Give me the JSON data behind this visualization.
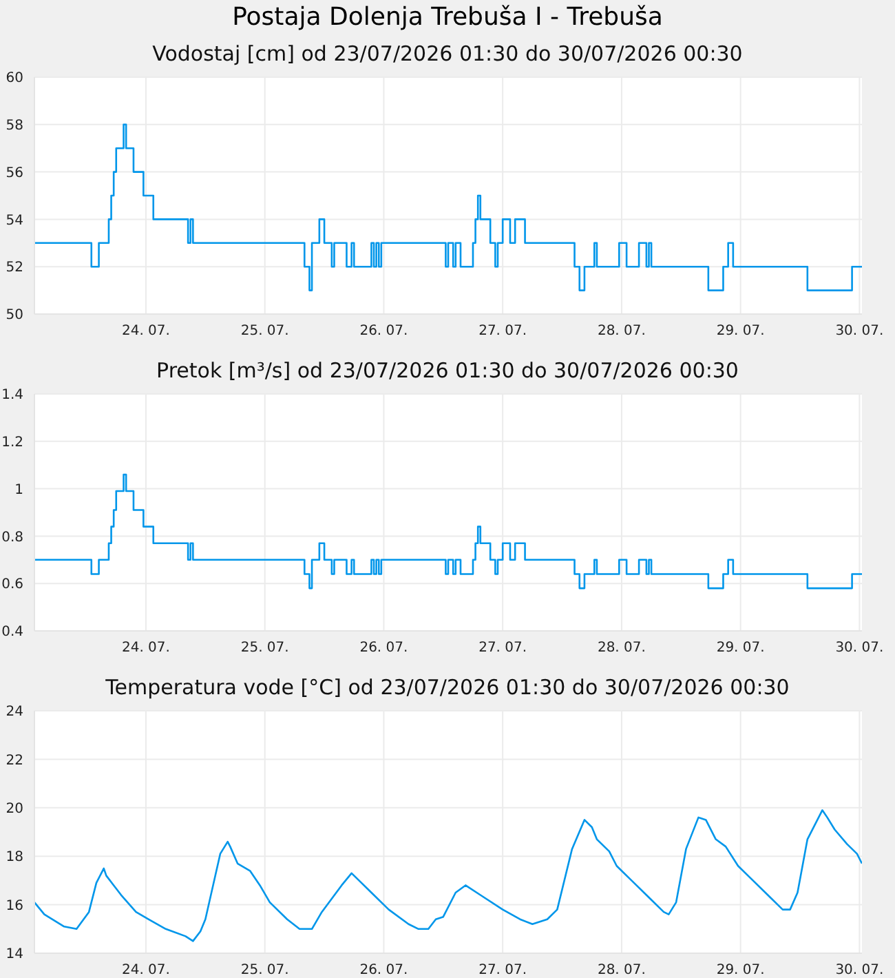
{
  "chart_data": [
    {
      "type": "step",
      "title": "Postaja Dolenja Trebuša I - Trebuša",
      "subtitle": "Vodostaj [cm] od 23/07/2026 01:30 do 30/07/2026 00:30",
      "x": [
        "2026-07-23T01:30",
        "2026-07-23T13:00",
        "2026-07-23T14:30",
        "2026-07-23T16:30",
        "2026-07-23T17:00",
        "2026-07-23T17:30",
        "2026-07-23T18:00",
        "2026-07-23T19:30",
        "2026-07-23T20:00",
        "2026-07-23T21:30",
        "2026-07-23T23:30",
        "2026-07-24T01:30",
        "2026-07-24T08:30",
        "2026-07-24T09:00",
        "2026-07-24T09:30",
        "2026-07-25T08:00",
        "2026-07-25T09:00",
        "2026-07-25T09:30",
        "2026-07-25T11:00",
        "2026-07-25T12:00",
        "2026-07-25T13:30",
        "2026-07-25T14:00",
        "2026-07-25T16:30",
        "2026-07-25T17:30",
        "2026-07-25T18:00",
        "2026-07-25T21:30",
        "2026-07-25T22:00",
        "2026-07-25T22:30",
        "2026-07-25T23:00",
        "2026-07-25T23:30",
        "2026-07-26T12:30",
        "2026-07-26T13:00",
        "2026-07-26T14:00",
        "2026-07-26T14:30",
        "2026-07-26T15:30",
        "2026-07-26T18:00",
        "2026-07-26T18:30",
        "2026-07-26T19:00",
        "2026-07-26T19:30",
        "2026-07-26T21:30",
        "2026-07-26T22:30",
        "2026-07-26T23:00",
        "2026-07-27T00:00",
        "2026-07-27T01:30",
        "2026-07-27T02:30",
        "2026-07-27T04:30",
        "2026-07-27T14:30",
        "2026-07-27T15:30",
        "2026-07-27T16:30",
        "2026-07-27T18:30",
        "2026-07-27T19:00",
        "2026-07-27T23:30",
        "2026-07-28T01:00",
        "2026-07-28T03:30",
        "2026-07-28T05:00",
        "2026-07-28T05:30",
        "2026-07-28T06:00",
        "2026-07-28T17:30",
        "2026-07-28T20:30",
        "2026-07-28T21:30",
        "2026-07-28T22:30",
        "2026-07-29T13:30",
        "2026-07-29T22:30",
        "2026-07-30T00:30"
      ],
      "series": [
        {
          "color": "#0096ea",
          "values": [
            53,
            52,
            53,
            54,
            55,
            56,
            57,
            58,
            57,
            56,
            55,
            54,
            53,
            54,
            53,
            52,
            51,
            53,
            54,
            53,
            52,
            53,
            52,
            53,
            52,
            53,
            52,
            53,
            52,
            53,
            52,
            53,
            52,
            53,
            52,
            53,
            54,
            55,
            54,
            53,
            52,
            53,
            54,
            53,
            54,
            53,
            52,
            51,
            52,
            53,
            52,
            53,
            52,
            53,
            52,
            53,
            52,
            51,
            52,
            53,
            52,
            51,
            52,
            52
          ]
        }
      ],
      "xlim": [
        "2026-07-23T01:30",
        "2026-07-30T00:30"
      ],
      "xticks": [
        {
          "value": "2026-07-24",
          "label": "24. 07."
        },
        {
          "value": "2026-07-25",
          "label": "25. 07."
        },
        {
          "value": "2026-07-26",
          "label": "26. 07."
        },
        {
          "value": "2026-07-27",
          "label": "27. 07."
        },
        {
          "value": "2026-07-28",
          "label": "28. 07."
        },
        {
          "value": "2026-07-29",
          "label": "29. 07."
        },
        {
          "value": "2026-07-30",
          "label": "30. 07."
        }
      ],
      "ylim": [
        50,
        60
      ],
      "yticks": [
        50,
        52,
        54,
        56,
        58,
        60
      ],
      "grid": true,
      "legend": false
    },
    {
      "type": "step",
      "title": "Pretok [m³/s] od 23/07/2026 01:30 do 30/07/2026 00:30",
      "x": [
        "2026-07-23T01:30",
        "2026-07-23T13:00",
        "2026-07-23T14:30",
        "2026-07-23T16:30",
        "2026-07-23T17:00",
        "2026-07-23T17:30",
        "2026-07-23T18:00",
        "2026-07-23T19:30",
        "2026-07-23T20:00",
        "2026-07-23T21:30",
        "2026-07-23T23:30",
        "2026-07-24T01:30",
        "2026-07-24T08:30",
        "2026-07-24T09:00",
        "2026-07-24T09:30",
        "2026-07-25T08:00",
        "2026-07-25T09:00",
        "2026-07-25T09:30",
        "2026-07-25T11:00",
        "2026-07-25T12:00",
        "2026-07-25T13:30",
        "2026-07-25T14:00",
        "2026-07-25T16:30",
        "2026-07-25T17:30",
        "2026-07-25T18:00",
        "2026-07-25T21:30",
        "2026-07-25T22:00",
        "2026-07-25T22:30",
        "2026-07-25T23:00",
        "2026-07-25T23:30",
        "2026-07-26T12:30",
        "2026-07-26T13:00",
        "2026-07-26T14:00",
        "2026-07-26T14:30",
        "2026-07-26T15:30",
        "2026-07-26T18:00",
        "2026-07-26T18:30",
        "2026-07-26T19:00",
        "2026-07-26T19:30",
        "2026-07-26T21:30",
        "2026-07-26T22:30",
        "2026-07-26T23:00",
        "2026-07-27T00:00",
        "2026-07-27T01:30",
        "2026-07-27T02:30",
        "2026-07-27T04:30",
        "2026-07-27T14:30",
        "2026-07-27T15:30",
        "2026-07-27T16:30",
        "2026-07-27T18:30",
        "2026-07-27T19:00",
        "2026-07-27T23:30",
        "2026-07-28T01:00",
        "2026-07-28T03:30",
        "2026-07-28T05:00",
        "2026-07-28T05:30",
        "2026-07-28T06:00",
        "2026-07-28T17:30",
        "2026-07-28T20:30",
        "2026-07-28T21:30",
        "2026-07-28T22:30",
        "2026-07-29T13:30",
        "2026-07-29T22:30",
        "2026-07-30T00:30"
      ],
      "series": [
        {
          "color": "#0096ea",
          "values": [
            0.7,
            0.64,
            0.7,
            0.77,
            0.84,
            0.91,
            0.99,
            1.06,
            0.99,
            0.91,
            0.84,
            0.77,
            0.7,
            0.77,
            0.7,
            0.64,
            0.58,
            0.7,
            0.77,
            0.7,
            0.64,
            0.7,
            0.64,
            0.7,
            0.64,
            0.7,
            0.64,
            0.7,
            0.64,
            0.7,
            0.64,
            0.7,
            0.64,
            0.7,
            0.64,
            0.7,
            0.77,
            0.84,
            0.77,
            0.7,
            0.64,
            0.7,
            0.77,
            0.7,
            0.77,
            0.7,
            0.64,
            0.58,
            0.64,
            0.7,
            0.64,
            0.7,
            0.64,
            0.7,
            0.64,
            0.7,
            0.64,
            0.58,
            0.64,
            0.7,
            0.64,
            0.58,
            0.64,
            0.64
          ]
        }
      ],
      "xlim": [
        "2026-07-23T01:30",
        "2026-07-30T00:30"
      ],
      "xticks": [
        {
          "value": "2026-07-24",
          "label": "24. 07."
        },
        {
          "value": "2026-07-25",
          "label": "25. 07."
        },
        {
          "value": "2026-07-26",
          "label": "26. 07."
        },
        {
          "value": "2026-07-27",
          "label": "27. 07."
        },
        {
          "value": "2026-07-28",
          "label": "28. 07."
        },
        {
          "value": "2026-07-29",
          "label": "29. 07."
        },
        {
          "value": "2026-07-30",
          "label": "30. 07."
        }
      ],
      "ylim": [
        0.4,
        1.4
      ],
      "yticks": [
        0.4,
        0.6,
        0.8,
        1,
        1.2,
        1.4
      ],
      "grid": true,
      "legend": false
    },
    {
      "type": "line",
      "title": "Temperatura vode [°C] od 23/07/2026 01:30 do 30/07/2026 00:30",
      "x": [
        "2026-07-23T01:30",
        "2026-07-23T03:30",
        "2026-07-23T07:30",
        "2026-07-23T10:00",
        "2026-07-23T12:30",
        "2026-07-23T14:00",
        "2026-07-23T15:30",
        "2026-07-23T16:00",
        "2026-07-23T17:30",
        "2026-07-23T19:00",
        "2026-07-23T22:00",
        "2026-07-24T00:30",
        "2026-07-24T04:00",
        "2026-07-24T08:00",
        "2026-07-24T09:30",
        "2026-07-24T11:00",
        "2026-07-24T12:00",
        "2026-07-24T15:00",
        "2026-07-24T16:30",
        "2026-07-24T17:00",
        "2026-07-24T18:30",
        "2026-07-24T21:00",
        "2026-07-24T23:00",
        "2026-07-25T01:00",
        "2026-07-25T04:30",
        "2026-07-25T07:00",
        "2026-07-25T09:30",
        "2026-07-25T11:30",
        "2026-07-25T15:30",
        "2026-07-25T17:30",
        "2026-07-25T19:00",
        "2026-07-25T21:30",
        "2026-07-26T01:00",
        "2026-07-26T05:00",
        "2026-07-26T07:00",
        "2026-07-26T09:00",
        "2026-07-26T10:30",
        "2026-07-26T12:00",
        "2026-07-26T14:30",
        "2026-07-26T16:30",
        "2026-07-26T19:30",
        "2026-07-27T00:00",
        "2026-07-27T03:30",
        "2026-07-27T06:00",
        "2026-07-27T09:00",
        "2026-07-27T11:00",
        "2026-07-27T14:00",
        "2026-07-27T16:30",
        "2026-07-27T18:00",
        "2026-07-27T19:00",
        "2026-07-27T21:30",
        "2026-07-27T23:00",
        "2026-07-28T02:00",
        "2026-07-28T05:30",
        "2026-07-28T08:30",
        "2026-07-28T09:30",
        "2026-07-28T11:00",
        "2026-07-28T13:00",
        "2026-07-28T15:30",
        "2026-07-28T17:00",
        "2026-07-28T19:00",
        "2026-07-28T21:00",
        "2026-07-28T23:30",
        "2026-07-29T02:30",
        "2026-07-29T06:00",
        "2026-07-29T08:30",
        "2026-07-29T10:00",
        "2026-07-29T11:30",
        "2026-07-29T13:30",
        "2026-07-29T16:30",
        "2026-07-29T17:30",
        "2026-07-29T19:00",
        "2026-07-29T21:30",
        "2026-07-29T23:30",
        "2026-07-30T00:30"
      ],
      "series": [
        {
          "color": "#0096ea",
          "values": [
            16.1,
            15.6,
            15.1,
            15.0,
            15.7,
            16.9,
            17.5,
            17.2,
            16.8,
            16.4,
            15.7,
            15.4,
            15.0,
            14.7,
            14.5,
            14.9,
            15.4,
            18.1,
            18.6,
            18.4,
            17.7,
            17.4,
            16.8,
            16.1,
            15.4,
            15.0,
            15.0,
            15.7,
            16.8,
            17.3,
            17.0,
            16.5,
            15.8,
            15.2,
            15.0,
            15.0,
            15.4,
            15.5,
            16.5,
            16.8,
            16.4,
            15.8,
            15.4,
            15.2,
            15.4,
            15.8,
            18.3,
            19.5,
            19.2,
            18.7,
            18.2,
            17.6,
            17.0,
            16.3,
            15.7,
            15.6,
            16.1,
            18.3,
            19.6,
            19.5,
            18.7,
            18.4,
            17.6,
            17.0,
            16.3,
            15.8,
            15.8,
            16.5,
            18.7,
            19.9,
            19.6,
            19.1,
            18.5,
            18.1,
            17.7
          ]
        }
      ],
      "xlim": [
        "2026-07-23T01:30",
        "2026-07-30T00:30"
      ],
      "xticks": [
        {
          "value": "2026-07-24",
          "label": "24. 07."
        },
        {
          "value": "2026-07-25",
          "label": "25. 07."
        },
        {
          "value": "2026-07-26",
          "label": "26. 07."
        },
        {
          "value": "2026-07-27",
          "label": "27. 07."
        },
        {
          "value": "2026-07-28",
          "label": "28. 07."
        },
        {
          "value": "2026-07-29",
          "label": "29. 07."
        },
        {
          "value": "2026-07-30",
          "label": "30. 07."
        }
      ],
      "ylim": [
        14,
        24
      ],
      "yticks": [
        14,
        16,
        18,
        20,
        22,
        24
      ],
      "grid": true,
      "legend": false
    }
  ]
}
